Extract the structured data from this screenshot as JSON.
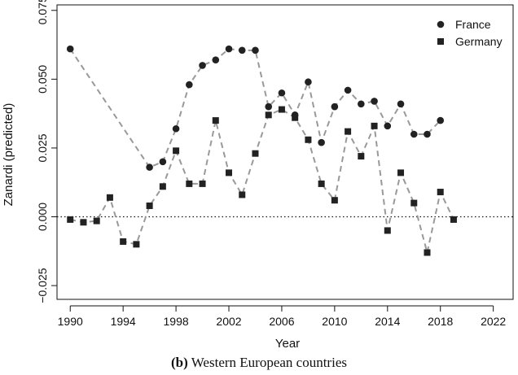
{
  "chart_data": {
    "type": "scatter",
    "xlabel": "Year",
    "ylabel": "Zanardi (predicted)",
    "xlim": [
      1989,
      2023.5
    ],
    "ylim": [
      -0.03,
      0.077
    ],
    "xticks": [
      1990,
      1994,
      1998,
      2002,
      2006,
      2010,
      2014,
      2018,
      2022
    ],
    "yticks": [
      -0.025,
      0.0,
      0.025,
      0.05,
      0.075
    ],
    "ytick_labels": [
      "−0.025",
      "0.000",
      "0.025",
      "0.050",
      "0.075"
    ],
    "reference_line": {
      "y": 0,
      "style": "dotted"
    },
    "legend_position": "top-right",
    "series": [
      {
        "name": "France",
        "marker": "circle",
        "x": [
          1990,
          1996,
          1997,
          1998,
          1999,
          2000,
          2001,
          2002,
          2003,
          2004,
          2005,
          2006,
          2007,
          2008,
          2009,
          2010,
          2011,
          2012,
          2013,
          2014,
          2015,
          2016,
          2017,
          2018
        ],
        "y": [
          0.061,
          0.018,
          0.02,
          0.032,
          0.048,
          0.055,
          0.057,
          0.061,
          0.0605,
          0.0605,
          0.04,
          0.045,
          0.037,
          0.049,
          0.027,
          0.04,
          0.046,
          0.041,
          0.042,
          0.033,
          0.041,
          0.03,
          0.03,
          0.035
        ]
      },
      {
        "name": "Germany",
        "marker": "square",
        "x": [
          1990,
          1991,
          1992,
          1993,
          1994,
          1995,
          1996,
          1997,
          1998,
          1999,
          2000,
          2001,
          2002,
          2003,
          2004,
          2005,
          2006,
          2007,
          2008,
          2009,
          2010,
          2011,
          2012,
          2013,
          2014,
          2015,
          2016,
          2017,
          2018,
          2019
        ],
        "y": [
          -0.001,
          -0.002,
          -0.0015,
          0.007,
          -0.009,
          -0.01,
          0.004,
          0.011,
          0.024,
          0.012,
          0.012,
          0.035,
          0.016,
          0.008,
          0.023,
          0.037,
          0.039,
          0.036,
          0.028,
          0.012,
          0.006,
          0.031,
          0.022,
          0.033,
          -0.005,
          0.016,
          0.005,
          -0.013,
          0.009,
          -0.001
        ]
      }
    ]
  },
  "caption": {
    "label": "(b)",
    "text": "Western European countries"
  },
  "colors": {
    "marker": "#222222",
    "connector": "#999999",
    "axis": "#111111"
  }
}
